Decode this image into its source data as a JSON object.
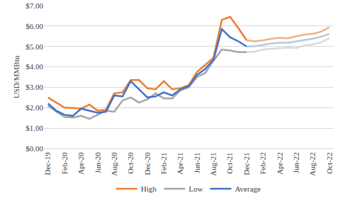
{
  "chart_data": {
    "type": "line",
    "y_label": "USD/MMBtu",
    "categories": [
      "Dec-19",
      null,
      "Feb-20",
      null,
      "Apr-20",
      null,
      "Jun-20",
      null,
      "Aug-20",
      null,
      "Oct-20",
      null,
      "Dec-20",
      null,
      "Feb-21",
      null,
      "Apr-21",
      null,
      "Jun-21",
      null,
      "Aug-21",
      null,
      "Oct-21",
      null,
      "Dec-21",
      null,
      "Feb-22",
      null,
      "Apr-22",
      null,
      "Jun-22",
      null,
      "Aug-22",
      null,
      "Oct-22"
    ],
    "series": [
      {
        "name": "High",
        "color": "#ED7D31",
        "values": [
          2.5,
          2.25,
          2.0,
          1.98,
          1.95,
          2.15,
          1.85,
          1.9,
          2.7,
          2.75,
          3.35,
          3.35,
          2.95,
          2.9,
          3.3,
          2.9,
          2.95,
          3.1,
          3.75,
          4.1,
          4.45,
          6.3,
          6.45,
          5.9,
          5.3,
          null,
          null,
          null,
          null,
          null,
          null,
          null,
          null,
          null,
          null
        ]
      },
      {
        "name": "Low",
        "color": "#A5A5A5",
        "values": [
          2.1,
          1.8,
          1.55,
          1.52,
          1.6,
          1.45,
          1.65,
          1.85,
          1.8,
          2.35,
          2.5,
          2.25,
          2.4,
          2.7,
          2.45,
          2.45,
          2.85,
          3.0,
          3.5,
          3.7,
          4.3,
          4.85,
          4.8,
          4.72,
          4.72,
          null,
          null,
          null,
          null,
          null,
          null,
          null,
          null,
          null,
          null
        ]
      },
      {
        "name": "Average",
        "color": "#4472C4",
        "values": [
          2.2,
          1.85,
          1.65,
          1.6,
          1.95,
          1.85,
          1.75,
          1.8,
          2.6,
          2.55,
          3.3,
          2.9,
          2.5,
          2.55,
          2.75,
          2.6,
          2.9,
          3.05,
          3.6,
          3.9,
          4.35,
          5.85,
          5.45,
          5.25,
          5.0,
          null,
          null,
          null,
          null,
          null,
          null,
          null,
          null,
          null,
          null
        ]
      },
      {
        "name": "High",
        "color": "#F4B183",
        "values": [
          null,
          null,
          null,
          null,
          null,
          null,
          null,
          null,
          null,
          null,
          null,
          null,
          null,
          null,
          null,
          null,
          null,
          null,
          null,
          null,
          null,
          null,
          null,
          null,
          5.3,
          5.25,
          5.3,
          5.38,
          5.42,
          5.4,
          5.5,
          5.58,
          5.62,
          5.72,
          5.95
        ]
      },
      {
        "name": "Low",
        "color": "#D9D9D9",
        "values": [
          null,
          null,
          null,
          null,
          null,
          null,
          null,
          null,
          null,
          null,
          null,
          null,
          null,
          null,
          null,
          null,
          null,
          null,
          null,
          null,
          null,
          null,
          null,
          null,
          4.72,
          4.75,
          4.85,
          4.88,
          4.92,
          4.95,
          4.92,
          5.05,
          5.1,
          5.2,
          5.4
        ]
      },
      {
        "name": "Average",
        "color": "#B4C7E7",
        "values": [
          null,
          null,
          null,
          null,
          null,
          null,
          null,
          null,
          null,
          null,
          null,
          null,
          null,
          null,
          null,
          null,
          null,
          null,
          null,
          null,
          null,
          null,
          null,
          null,
          5.0,
          5.02,
          5.08,
          5.15,
          5.18,
          5.18,
          5.25,
          5.32,
          5.38,
          5.48,
          5.62
        ]
      }
    ],
    "ylim": [
      0,
      7
    ],
    "yticks": [
      {
        "value": 0,
        "label": "$0.00"
      },
      {
        "value": 1,
        "label": "$1.00"
      },
      {
        "value": 2,
        "label": "$2.00"
      },
      {
        "value": 3,
        "label": "$3.00"
      },
      {
        "value": 4,
        "label": "$4.00"
      },
      {
        "value": 5,
        "label": "$5.00"
      },
      {
        "value": 6,
        "label": "$6.00"
      },
      {
        "value": 7,
        "label": "$7.00"
      }
    ],
    "grid": true,
    "legend": "bottom"
  }
}
